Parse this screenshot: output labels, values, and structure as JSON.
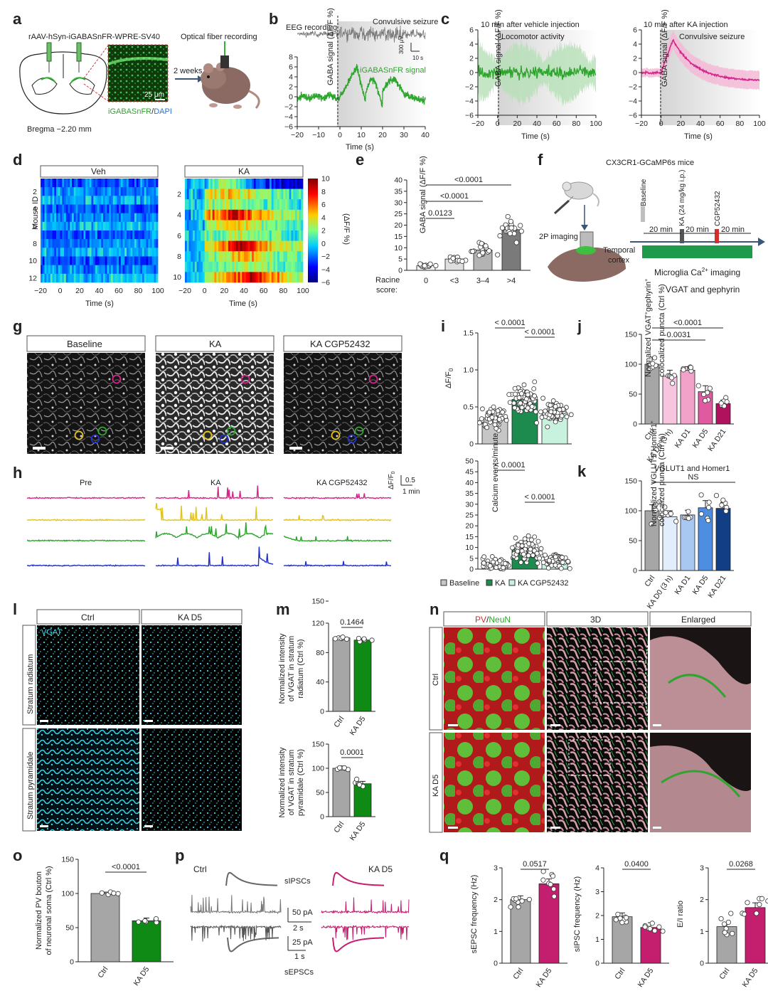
{
  "panel_letters": {
    "a": "a",
    "b": "b",
    "c": "c",
    "d": "d",
    "e": "e",
    "f": "f",
    "g": "g",
    "h": "h",
    "i": "i",
    "j": "j",
    "k": "k",
    "l": "l",
    "m": "m",
    "n": "n",
    "o": "o",
    "p": "p",
    "q": "q"
  },
  "a": {
    "vector": "rAAV-hSyn-iGABASnFR-WPRE-SV40",
    "bregma": "Bregma −2.20 mm",
    "scale": "25 μm",
    "stain_green": "iGABASnFR",
    "stain_sep": "/",
    "stain_blue": "DAPI",
    "weeks": "2 weeks",
    "fiber": "Optical fiber recording"
  },
  "b": {
    "eeg": "EEG recording",
    "seizure": "Convulsive seizure",
    "signal": "iGABASnFR signal",
    "ylabel": "GABA signal (ΔF/F %)",
    "xlabel": "Time (s)",
    "scale_v": "300 μV",
    "scale_t": "10 s",
    "yticks": [
      "8",
      "6",
      "4",
      "2",
      "0",
      "−2",
      "−4",
      "−6"
    ],
    "xticks": [
      "−20",
      "−10",
      "0",
      "10",
      "20",
      "30",
      "40"
    ]
  },
  "c": {
    "left_title": "10 min after vehicle injection",
    "left_sub": "Locomotor activity",
    "right_title": "10 min after KA injection",
    "right_sub": "Convulsive seizure",
    "ylabel": "GABA signal (ΔF/F %)",
    "xlabel": "Time (s)",
    "yticks": [
      "6",
      "4",
      "2",
      "0",
      "−2",
      "−4",
      "−6"
    ],
    "xticks": [
      "−20",
      "0",
      "20",
      "40",
      "60",
      "80",
      "100"
    ]
  },
  "d": {
    "veh": "Veh",
    "ka": "KA",
    "ylabel": "Mouse ID",
    "xlabel": "Time (s)",
    "cbar_label": "(ΔF/F %)",
    "yticks_veh": [
      "2",
      "4",
      "6",
      "8",
      "10",
      "12"
    ],
    "yticks_ka": [
      "2",
      "4",
      "6",
      "8",
      "10"
    ],
    "xticks": [
      "−20",
      "0",
      "20",
      "40",
      "60",
      "80",
      "100"
    ],
    "cbar_ticks": [
      "10",
      "8",
      "6",
      "4",
      "2",
      "0",
      "−2",
      "−4",
      "−6"
    ]
  },
  "e": {
    "ylabel": "GABA signal (ΔF/F %)",
    "racine": "Racine",
    "score": "score:",
    "yticks": [
      "40",
      "35",
      "30",
      "25",
      "20",
      "15",
      "10",
      "5",
      "0"
    ],
    "cats": [
      "0",
      "<3",
      "3–4",
      ">4"
    ],
    "p1": "<0.0001",
    "p2": "<0.0001",
    "p3": "0.0123"
  },
  "f": {
    "mice": "CX3CR1-GCaMP6s mice",
    "twop": "2P imaging",
    "temporal": "Temporal",
    "cortex": "cortex",
    "baseline": "Baseline",
    "ka": "KA (24 mg/kg i.p.)",
    "cgp": "CGP52432",
    "m1": "20 min",
    "m2": "20 min",
    "m3": "20 min",
    "micro1": "Microglia Ca",
    "micro_sup": "2+",
    "micro2": " imaging",
    "vgat": "VGAT and gephyrin"
  },
  "g": {
    "t1": "Baseline",
    "t2": "KA",
    "t3": "KA CGP52432"
  },
  "h": {
    "t1": "Pre",
    "t2": "KA",
    "t3": "KA CGP52432",
    "scale_v": "0.5",
    "scale_t": "1 min",
    "df": "ΔF/F",
    "sub0": "0"
  },
  "i": {
    "ylabel_top": "ΔF/F",
    "ylabel_top_sub": "0",
    "ylabel_bottom": "Calcium events/minute",
    "yticks_top": [
      "1.5",
      "1.0",
      "0.5",
      "0"
    ],
    "yticks_bottom": [
      "50",
      "45",
      "40",
      "35",
      "30",
      "25",
      "20",
      "15",
      "10",
      "5",
      "0"
    ],
    "p_top1": "< 0.0001",
    "p_top2": "< 0.0001",
    "p_bot1": "< 0.0001",
    "p_bot2": "< 0.0001",
    "leg1": "Baseline",
    "leg2": "KA",
    "leg3": "KA CGP52432"
  },
  "j": {
    "ylabel1": "Normalized VGAT",
    "ylabel1_sup1": "+",
    "ylabel1_mid": "gephyrin",
    "ylabel1_sup2": "+",
    "ylabel2": "colocalized puncta (Ctrl %)",
    "yticks": [
      "150",
      "100",
      "50",
      "0"
    ],
    "cats": [
      "Ctrl",
      "KA D0 (3 h)",
      "KA D1",
      "KA D5",
      "KA D21"
    ],
    "p1": "<0.0001",
    "p2": "0.0031"
  },
  "k": {
    "title": "VGLUT1 and Homer1",
    "ylabel1": "Normalized VGLUT1",
    "ylabel1_sup1": "+",
    "ylabel1_mid": "Homer1",
    "ylabel1_sup2": "+",
    "ylabel2": "colocalized puncta (Ctrl %)",
    "yticks": [
      "150",
      "100",
      "50",
      "0"
    ],
    "cats": [
      "Ctrl",
      "KA D0 (3 h)",
      "KA D1",
      "KA D5",
      "KA D21"
    ],
    "ns": "NS"
  },
  "l": {
    "ctrl": "Ctrl",
    "ka": "KA D5",
    "vgat": "VGAT",
    "row1": "Stratum radiatum",
    "row2": "Stratum pyramidale"
  },
  "m": {
    "top_ylabel": [
      "Normalized intensity",
      "of VGAT in stratum",
      "radiatum (Ctrl %)"
    ],
    "bot_ylabel": [
      "Normalized intensity",
      "of VGAT in stratum",
      "pyramidale (Ctrl %)"
    ],
    "yticks": [
      "150",
      "120",
      "80",
      "40",
      "0"
    ],
    "yticks_bot": [
      "150",
      "100",
      "50",
      "0"
    ],
    "cats": [
      "Ctrl",
      "KA D5"
    ],
    "p_top": "0.1464",
    "p_bot": "0.0001"
  },
  "n": {
    "pv": "PV",
    "sep": "/",
    "neun": "NeuN",
    "three_d": "3D",
    "enlarged": "Enlarged",
    "ctrl": "Ctrl",
    "ka": "KA D5"
  },
  "o": {
    "ylabel": [
      "Normalized PV bouton",
      "of neuronal soma (Ctrl %)"
    ],
    "yticks": [
      "150",
      "100",
      "50",
      "0"
    ],
    "cats": [
      "Ctrl",
      "KA D5"
    ],
    "p": "<0.0001"
  },
  "p": {
    "ctrl": "Ctrl",
    "ka": "KA D5",
    "sipsc": "sIPSCs",
    "sepsc": "sEPSCs",
    "s1": "50 pA",
    "s2": "2 s",
    "s3": "25 pA",
    "s4": "1 s"
  },
  "q": {
    "yl1": "sEPSC frequency (Hz)",
    "yl2": "sIPSC frequency (Hz)",
    "yl3": "E/I ratio",
    "yt1": [
      "3",
      "2",
      "1",
      "0"
    ],
    "yt2": [
      "4",
      "3",
      "2",
      "1",
      "0"
    ],
    "yt3": [
      "3",
      "2",
      "1",
      "0"
    ],
    "cats": [
      "Ctrl",
      "KA D5"
    ],
    "p1": "0.0517",
    "p2": "0.0400",
    "p3": "0.0268"
  },
  "chart_data": [
    {
      "type": "bar",
      "panel": "e",
      "categories": [
        "0",
        "<3",
        "3–4",
        ">4"
      ],
      "values": [
        2,
        5,
        9,
        18
      ],
      "ylim": [
        0,
        40
      ],
      "ylabel": "GABA signal (ΔF/F %)",
      "xlabel": "Racine score:"
    },
    {
      "type": "bar",
      "panel": "i-top",
      "categories": [
        "Baseline",
        "KA",
        "KA CGP52432"
      ],
      "values": [
        0.35,
        0.6,
        0.42
      ],
      "ylim": [
        0,
        1.5
      ]
    },
    {
      "type": "bar",
      "panel": "i-bottom",
      "categories": [
        "Baseline",
        "KA",
        "KA CGP52432"
      ],
      "values": [
        2.5,
        9,
        4
      ],
      "ylim": [
        0,
        50
      ],
      "ylabel": "Calcium events/minute"
    },
    {
      "type": "bar",
      "panel": "j",
      "categories": [
        "Ctrl",
        "KA D0 (3 h)",
        "KA D1",
        "KA D5",
        "KA D21"
      ],
      "values": [
        100,
        80,
        90,
        54,
        34
      ],
      "ylim": [
        0,
        150
      ]
    },
    {
      "type": "bar",
      "panel": "k",
      "categories": [
        "Ctrl",
        "KA D0 (3 h)",
        "KA D1",
        "KA D5",
        "KA D21"
      ],
      "values": [
        100,
        90,
        93,
        105,
        104
      ],
      "ylim": [
        0,
        150
      ]
    },
    {
      "type": "bar",
      "panel": "m-top",
      "categories": [
        "Ctrl",
        "KA D5"
      ],
      "values": [
        100,
        97
      ],
      "ylim": [
        0,
        120
      ]
    },
    {
      "type": "bar",
      "panel": "m-bottom",
      "categories": [
        "Ctrl",
        "KA D5"
      ],
      "values": [
        100,
        68
      ],
      "ylim": [
        0,
        150
      ]
    },
    {
      "type": "bar",
      "panel": "o",
      "categories": [
        "Ctrl",
        "KA D5"
      ],
      "values": [
        100,
        60
      ],
      "ylim": [
        0,
        150
      ]
    },
    {
      "type": "bar",
      "panel": "q1",
      "categories": [
        "Ctrl",
        "KA D5"
      ],
      "values": [
        2.0,
        2.5
      ],
      "ylim": [
        0,
        3
      ],
      "ylabel": "sEPSC frequency (Hz)"
    },
    {
      "type": "bar",
      "panel": "q2",
      "categories": [
        "Ctrl",
        "KA D5"
      ],
      "values": [
        1.95,
        1.5
      ],
      "ylim": [
        0,
        4
      ],
      "ylabel": "sIPSC frequency (Hz)"
    },
    {
      "type": "bar",
      "panel": "q3",
      "categories": [
        "Ctrl",
        "KA D5"
      ],
      "values": [
        1.15,
        1.75
      ],
      "ylim": [
        0,
        3
      ],
      "ylabel": "E/I ratio"
    }
  ]
}
